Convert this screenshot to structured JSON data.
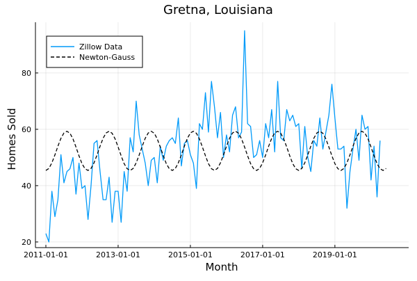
{
  "chart_data": {
    "type": "line",
    "title": "Gretna, Louisiana",
    "xlabel": "Month",
    "ylabel": "Homes Sold",
    "x_start": "2011-01",
    "x_step": "month",
    "xlim": [
      "2011-01-01",
      "2020-12-01"
    ],
    "ylim": [
      18,
      98
    ],
    "xticks": [
      "2011-01-01",
      "2013-01-01",
      "2015-01-01",
      "2017-01-01",
      "2019-01-01"
    ],
    "yticks": [
      20,
      40,
      60,
      80
    ],
    "grid": true,
    "legend_position": "top-left",
    "series": [
      {
        "name": "Zillow Data",
        "style": "solid",
        "color": "#009AF9",
        "values": [
          23,
          20,
          38,
          29,
          35,
          51,
          41,
          45,
          46,
          50,
          37,
          48,
          39,
          40,
          28,
          40,
          55,
          56,
          45,
          35,
          35,
          43,
          27,
          38,
          38,
          27,
          45,
          38,
          57,
          52,
          70,
          58,
          53,
          48,
          40,
          49,
          50,
          41,
          54,
          49,
          54,
          56,
          57,
          55,
          64,
          47,
          55,
          56,
          51,
          48,
          39,
          62,
          60,
          73,
          59,
          77,
          68,
          57,
          66,
          50,
          58,
          52,
          65,
          68,
          57,
          59,
          95,
          62,
          61,
          50,
          51,
          56,
          50,
          62,
          57,
          67,
          52,
          77,
          57,
          56,
          67,
          63,
          65,
          61,
          62,
          46,
          61,
          50,
          45,
          56,
          54,
          64,
          53,
          59,
          65,
          76,
          64,
          53,
          53,
          54,
          32,
          45,
          53,
          60,
          49,
          65,
          60,
          61,
          42,
          54,
          36,
          56
        ]
      },
      {
        "name": "Newton-Gauss",
        "style": "dashed",
        "color": "#000000",
        "values": [
          45.4,
          46.1,
          48.1,
          50.9,
          54.0,
          56.8,
          58.7,
          59.3,
          58.6,
          56.6,
          53.7,
          50.6,
          47.8,
          46.0,
          45.4,
          46.1,
          48.1,
          50.9,
          54.0,
          56.8,
          58.7,
          59.3,
          58.6,
          56.6,
          53.7,
          50.6,
          47.8,
          46.0,
          45.4,
          46.1,
          48.1,
          50.9,
          54.0,
          56.8,
          58.7,
          59.3,
          58.6,
          56.6,
          53.7,
          50.6,
          47.8,
          46.0,
          45.4,
          46.1,
          48.1,
          50.9,
          54.0,
          56.8,
          58.7,
          59.3,
          58.6,
          56.6,
          53.7,
          50.6,
          47.8,
          46.0,
          45.4,
          46.1,
          48.1,
          50.9,
          54.0,
          56.8,
          58.7,
          59.3,
          58.6,
          56.6,
          53.7,
          50.6,
          47.8,
          46.0,
          45.4,
          46.1,
          48.1,
          50.9,
          54.0,
          56.8,
          58.7,
          59.3,
          58.6,
          56.6,
          53.7,
          50.6,
          47.8,
          46.0,
          45.4,
          46.1,
          48.1,
          50.9,
          54.0,
          56.8,
          58.7,
          59.3,
          58.6,
          56.6,
          53.7,
          50.6,
          47.8,
          46.0,
          45.4,
          46.1,
          48.1,
          50.9,
          54.0,
          56.8,
          58.7,
          59.3,
          58.6,
          56.6,
          53.7,
          50.6,
          47.8,
          46.0,
          45.4,
          46.1
        ]
      }
    ]
  }
}
